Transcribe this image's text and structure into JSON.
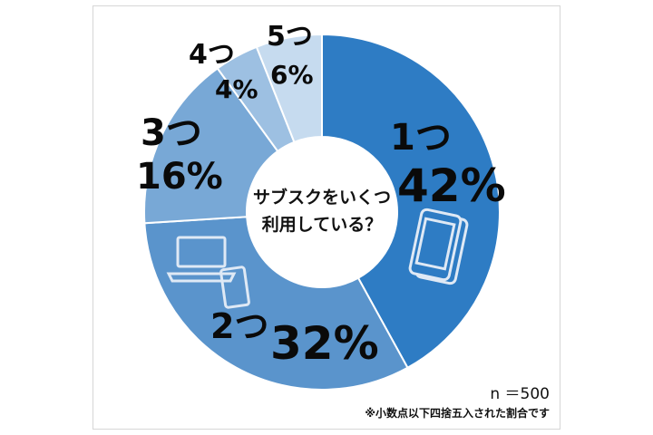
{
  "chart_data": {
    "type": "pie",
    "style": "donut",
    "title": "サブスクをいくつ利用している？",
    "title_lines": [
      "サブスクをいくつ",
      "利用している？"
    ],
    "categories": [
      "1つ",
      "2つ",
      "3つ",
      "4つ",
      "5つ"
    ],
    "values": [
      42,
      32,
      16,
      4,
      6
    ],
    "value_labels": [
      "42%",
      "32%",
      "16%",
      "4%",
      "6%"
    ],
    "colors": [
      "#2e7cc4",
      "#5a94cc",
      "#78a8d6",
      "#9dc0e2",
      "#c6dbef"
    ],
    "icons": [
      "smartphone-icon",
      "laptop-icon",
      "tablet-icon"
    ],
    "sample_size": "n ＝500",
    "footnote": "※小数点以下四捨五入された割合です"
  }
}
